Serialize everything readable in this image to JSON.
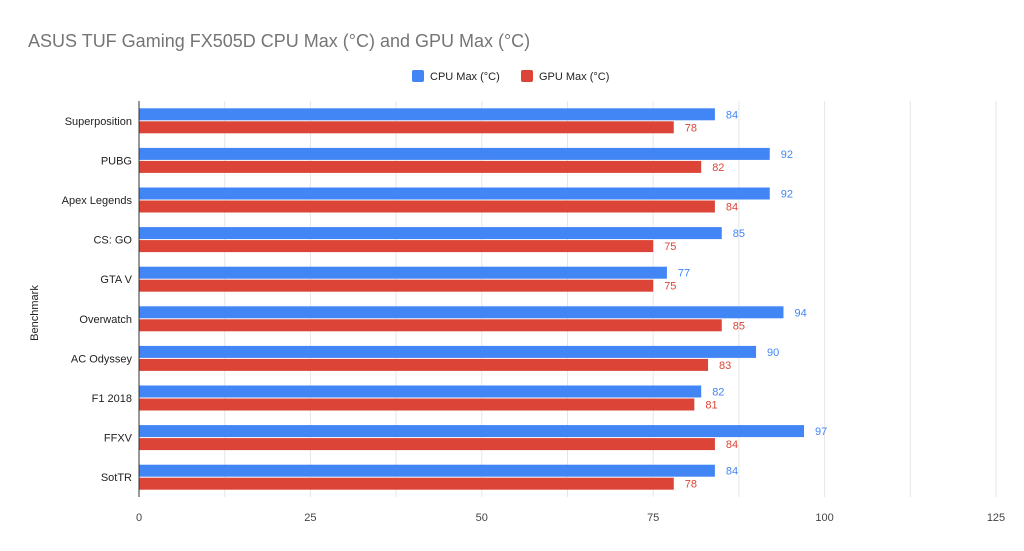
{
  "chart_data": {
    "type": "bar",
    "orientation": "horizontal",
    "title": "ASUS TUF Gaming FX505D CPU Max (°C) and GPU Max (°C)",
    "xlabel": "",
    "ylabel": "Benchmark",
    "xlim": [
      0,
      125
    ],
    "x_ticks": [
      "0",
      "25",
      "50",
      "75",
      "100",
      "125"
    ],
    "grid": true,
    "legend_position": "top-center",
    "categories": [
      "Superposition",
      "PUBG",
      "Apex Legends",
      "CS: GO",
      "GTA V",
      "Overwatch",
      "AC Odyssey",
      "F1 2018",
      "FFXV",
      "SotTR"
    ],
    "series": [
      {
        "name": "CPU Max (°C)",
        "color": "#4285f4",
        "values": [
          84,
          92,
          92,
          85,
          77,
          94,
          90,
          82,
          97,
          84
        ]
      },
      {
        "name": "GPU Max (°C)",
        "color": "#db4437",
        "values": [
          78,
          82,
          84,
          75,
          75,
          85,
          83,
          81,
          84,
          78
        ]
      }
    ]
  }
}
